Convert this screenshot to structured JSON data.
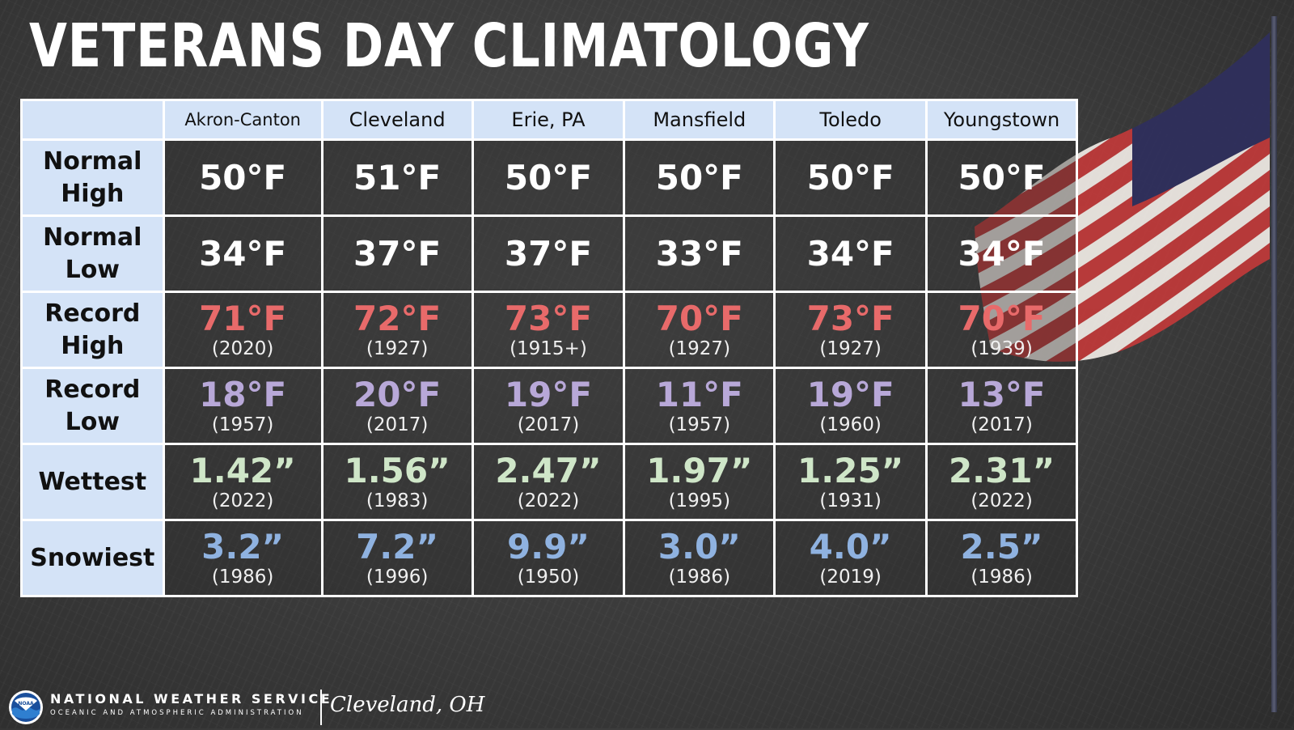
{
  "title": "VETERANS DAY CLIMATOLOGY",
  "columns": [
    "Akron-Canton",
    "Cleveland",
    "Erie, PA",
    "Mansfield",
    "Toledo",
    "Youngstown"
  ],
  "rows": [
    {
      "label_line1": "Normal",
      "label_line2": "High",
      "cells": [
        {
          "value": "50°F"
        },
        {
          "value": "51°F"
        },
        {
          "value": "50°F"
        },
        {
          "value": "50°F"
        },
        {
          "value": "50°F"
        },
        {
          "value": "50°F"
        }
      ]
    },
    {
      "label_line1": "Normal",
      "label_line2": "Low",
      "cells": [
        {
          "value": "34°F"
        },
        {
          "value": "37°F"
        },
        {
          "value": "37°F"
        },
        {
          "value": "33°F"
        },
        {
          "value": "34°F"
        },
        {
          "value": "34°F"
        }
      ]
    },
    {
      "label_line1": "Record",
      "label_line2": "High",
      "cells": [
        {
          "value": "71°F",
          "year": "(2020)"
        },
        {
          "value": "72°F",
          "year": "(1927)"
        },
        {
          "value": "73°F",
          "year": "(1915+)"
        },
        {
          "value": "70°F",
          "year": "(1927)"
        },
        {
          "value": "73°F",
          "year": "(1927)"
        },
        {
          "value": "70°F",
          "year": "(1939)"
        }
      ]
    },
    {
      "label_line1": "Record",
      "label_line2": "Low",
      "cells": [
        {
          "value": "18°F",
          "year": "(1957)"
        },
        {
          "value": "20°F",
          "year": "(2017)"
        },
        {
          "value": "19°F",
          "year": "(2017)"
        },
        {
          "value": "11°F",
          "year": "(1957)"
        },
        {
          "value": "19°F",
          "year": "(1960)"
        },
        {
          "value": "13°F",
          "year": "(2017)"
        }
      ]
    },
    {
      "label_line1": "Wettest",
      "label_line2": "",
      "cells": [
        {
          "value": "1.42”",
          "year": "(2022)"
        },
        {
          "value": "1.56”",
          "year": "(1983)"
        },
        {
          "value": "2.47”",
          "year": "(2022)"
        },
        {
          "value": "1.97”",
          "year": "(1995)"
        },
        {
          "value": "1.25”",
          "year": "(1931)"
        },
        {
          "value": "2.31”",
          "year": "(2022)"
        }
      ]
    },
    {
      "label_line1": "Snowiest",
      "label_line2": "",
      "cells": [
        {
          "value": "3.2”",
          "year": "(1986)"
        },
        {
          "value": "7.2”",
          "year": "(1996)"
        },
        {
          "value": "9.9”",
          "year": "(1950)"
        },
        {
          "value": "3.0”",
          "year": "(1986)"
        },
        {
          "value": "4.0”",
          "year": "(2019)"
        },
        {
          "value": "2.5”",
          "year": "(1986)"
        }
      ]
    }
  ],
  "colors": {
    "header_bg": "#d4e3f7",
    "normal": "#ffffff",
    "record_high": "#e86a6a",
    "record_low": "#b8a8d8",
    "wettest": "#cfe6c8",
    "snowiest": "#8fb2e0"
  },
  "footer": {
    "logo_icon": "noaa-logo-icon",
    "logo_text": "NOAA",
    "agency": "NATIONAL WEATHER SERVICE",
    "agency_sub": "OCEANIC AND ATMOSPHERIC ADMINISTRATION",
    "office": "Cleveland, OH"
  }
}
